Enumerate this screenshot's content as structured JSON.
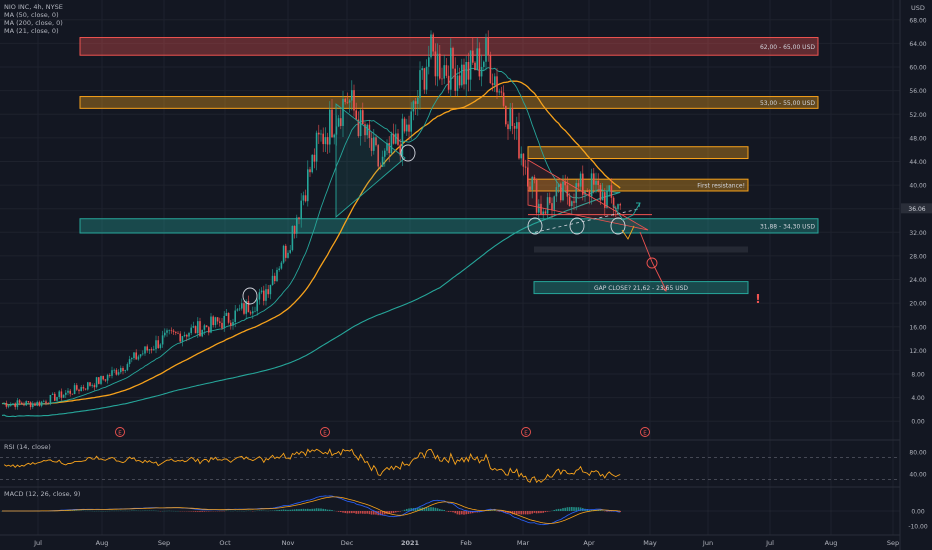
{
  "header": {
    "symbol": "NIO INC, 4h, NYSE",
    "currency": "USD",
    "ma_legends": [
      "MA (50, close, 0)",
      "MA (200, close, 0)",
      "MA (21, close, 0)"
    ],
    "rsi_legend": "RSI (14, close)",
    "macd_legend": "MACD (12, 26, close, 9)"
  },
  "last_price": "36.06",
  "events_label": "E",
  "colors": {
    "background": "#131722",
    "up": "#26a69a",
    "down": "#ef5350",
    "ma50": "#f7a21b",
    "ma200": "#26a69a",
    "ma21": "#26a69a",
    "rsi": "#f7a21b",
    "grid": "#1e222d"
  },
  "chart_data": [
    {
      "type": "candlestick",
      "title": "NIO INC, 4h, NYSE",
      "x_ticks": [
        "Jul",
        "Aug",
        "Sep",
        "Oct",
        "Nov",
        "Dec",
        "2021",
        "Feb",
        "Mar",
        "Apr",
        "May",
        "Jun",
        "Jul",
        "Aug",
        "Sep"
      ],
      "y_ticks": [
        "68.00",
        "64.00",
        "60.00",
        "56.00",
        "52.00",
        "48.00",
        "44.00",
        "40.00",
        "36.00",
        "32.00",
        "28.00",
        "24.00",
        "20.00",
        "16.00",
        "12.00",
        "8.00",
        "4.00",
        "0.00"
      ],
      "ylim": [
        -2,
        70
      ],
      "price_path": [
        [
          "Jul",
          3
        ],
        [
          "Aug",
          7
        ],
        [
          "Sep",
          14
        ],
        [
          "Oct",
          17
        ],
        [
          "Oct 20",
          21
        ],
        [
          "Nov",
          30
        ],
        [
          "Nov 15",
          47
        ],
        [
          "Dec",
          55
        ],
        [
          "Dec 15",
          43
        ],
        [
          "2021",
          50
        ],
        [
          "Jan 10",
          62
        ],
        [
          "Jan 20",
          60
        ],
        [
          "Feb",
          59
        ],
        [
          "Feb 10",
          62
        ],
        [
          "Feb 20",
          54
        ],
        [
          "Mar",
          45
        ],
        [
          "Mar 10",
          36
        ],
        [
          "Mar 20",
          38
        ],
        [
          "Apr",
          40
        ],
        [
          "Apr 15",
          36
        ]
      ],
      "zones": [
        {
          "label": "62,00 - 65,00 USD",
          "low": 62,
          "high": 65,
          "color": "#ef5350"
        },
        {
          "label": "53,00 - 55,00 USD",
          "low": 53,
          "high": 55,
          "color": "#f7a21b"
        },
        {
          "label": "First resistance!",
          "low": 39,
          "high": 41,
          "color": "#f7a21b"
        },
        {
          "label": "",
          "low": 44.5,
          "high": 46.5,
          "color": "#f7a21b"
        },
        {
          "label": "31,88 - 34,30 USD",
          "low": 31.88,
          "high": 34.3,
          "color": "#26a69a"
        },
        {
          "label": "GAP CLOSE? 21,62 - 23,65 USD",
          "low": 21.62,
          "high": 23.65,
          "color": "#26a69a"
        }
      ],
      "annotations": [
        "!"
      ]
    },
    {
      "type": "line",
      "title": "RSI (14, close)",
      "y_ticks": [
        "80.00",
        "40.00"
      ]
    },
    {
      "type": "bar",
      "title": "MACD (12, 26, close, 9)",
      "y_ticks": [
        "0.00",
        "-10.00"
      ]
    }
  ]
}
